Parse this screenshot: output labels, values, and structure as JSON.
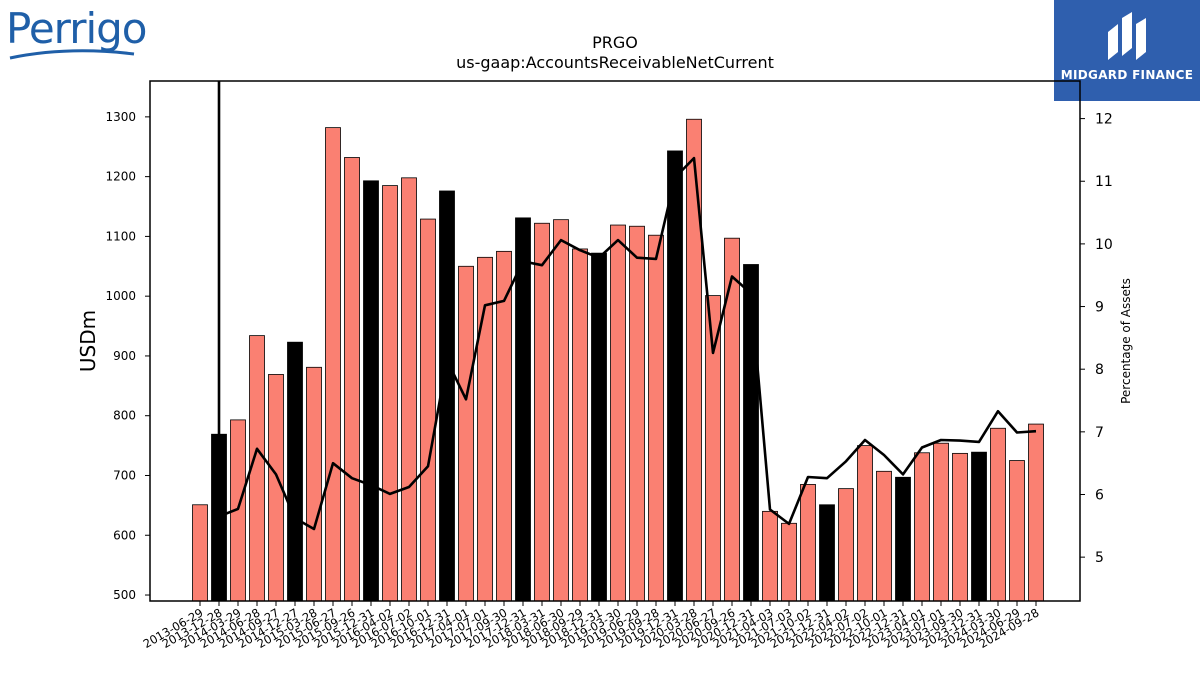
{
  "header": {
    "left_logo": "Perrigo",
    "right_logo": "MIDGARD FINANCE"
  },
  "chart_data": {
    "type": "bar",
    "title": "PRGO",
    "subtitle": "us-gaap:AccountsReceivableNetCurrent",
    "ylabel": "USDm",
    "y2label": "Percentage of Assets",
    "ylim": [
      490,
      1360
    ],
    "y2lim": [
      4.3,
      12.6
    ],
    "yticks": [
      500,
      600,
      700,
      800,
      900,
      1000,
      1100,
      1200,
      1300
    ],
    "y2ticks": [
      5,
      6,
      7,
      8,
      9,
      10,
      11,
      12
    ],
    "categories": [
      "2013-06-29",
      "2013-12-28",
      "2014-03-29",
      "2014-06-28",
      "2014-09-27",
      "2014-12-27",
      "2015-03-28",
      "2015-06-27",
      "2015-09-26",
      "2015-12-31",
      "2016-04-02",
      "2016-07-02",
      "2016-10-01",
      "2016-12-31",
      "2017-04-01",
      "2017-07-01",
      "2017-09-30",
      "2017-12-31",
      "2018-03-31",
      "2018-06-30",
      "2018-09-29",
      "2018-12-31",
      "2019-03-30",
      "2019-06-29",
      "2019-09-28",
      "2019-12-31",
      "2020-03-28",
      "2020-06-27",
      "2020-09-26",
      "2020-12-31",
      "2021-04-03",
      "2021-07-03",
      "2021-10-02",
      "2021-12-31",
      "2022-04-02",
      "2022-07-02",
      "2022-10-01",
      "2022-12-31",
      "2023-04-01",
      "2023-07-01",
      "2023-09-30",
      "2023-12-31",
      "2024-03-30",
      "2024-06-29",
      "2024-09-28"
    ],
    "values": [
      651,
      769,
      793,
      934,
      869,
      923,
      881,
      1282,
      1232,
      1193,
      1185,
      1198,
      1129,
      1176,
      1050,
      1065,
      1075,
      1131,
      1122,
      1128,
      1079,
      1072,
      1119,
      1117,
      1102,
      1243,
      1296,
      1001,
      1097,
      1053,
      640,
      620,
      685,
      651,
      678,
      750,
      707,
      697,
      738,
      754,
      737,
      739,
      779,
      725,
      786
    ],
    "fiscal_year_end": [
      false,
      true,
      false,
      false,
      false,
      true,
      false,
      false,
      false,
      true,
      false,
      false,
      false,
      true,
      false,
      false,
      false,
      true,
      false,
      false,
      false,
      true,
      false,
      false,
      false,
      true,
      false,
      false,
      false,
      true,
      false,
      false,
      false,
      true,
      false,
      false,
      false,
      true,
      false,
      false,
      false,
      true,
      false,
      false,
      false
    ],
    "bar_color": "#fa8072",
    "fy_bar_color": "#000000",
    "line_color": "#000000",
    "pct_of_assets": [
      null,
      5.65,
      5.77,
      6.73,
      6.32,
      5.62,
      5.45,
      6.5,
      6.26,
      6.15,
      6.01,
      6.12,
      6.45,
      8.14,
      7.52,
      9.02,
      9.09,
      9.72,
      9.66,
      10.06,
      9.9,
      9.78,
      10.06,
      9.78,
      9.76,
      11.06,
      11.37,
      8.26,
      9.48,
      9.21,
      5.76,
      5.53,
      6.28,
      6.26,
      6.53,
      6.87,
      6.63,
      6.32,
      6.75,
      6.87,
      6.86,
      6.84,
      7.33,
      6.99,
      7.01
    ]
  }
}
